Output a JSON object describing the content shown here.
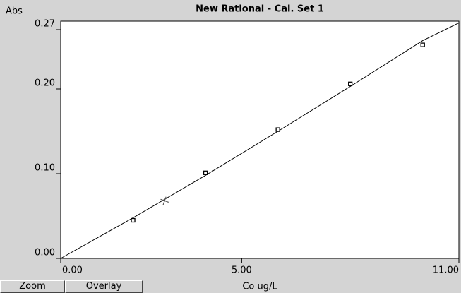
{
  "ui": {
    "buttons": [
      "Zoom",
      "Overlay"
    ]
  },
  "chart_data": {
    "type": "scatter",
    "title": "New Rational - Cal. Set 1",
    "y_label": "Abs",
    "x_label": "Co ug/L",
    "xlim": [
      0,
      11
    ],
    "ylim": [
      0,
      0.28
    ],
    "xticks": [
      {
        "value": 0,
        "label": "0.00"
      },
      {
        "value": 5,
        "label": "5.00"
      },
      {
        "value": 11,
        "label": "11.00"
      }
    ],
    "yticks": [
      {
        "value": 0,
        "label": "0.00"
      },
      {
        "value": 0.1,
        "label": "0.10"
      },
      {
        "value": 0.2,
        "label": "0.20"
      },
      {
        "value": 0.27,
        "label": "0.27"
      }
    ],
    "series": [
      {
        "marker": "line",
        "color": "#000000",
        "x": [
          0,
          2,
          4,
          6,
          8,
          10,
          11
        ],
        "y": [
          0,
          0.048,
          0.098,
          0.15,
          0.203,
          0.257,
          0.278
        ]
      },
      {
        "marker": "square",
        "color": "#000000",
        "x": [
          2,
          4,
          6,
          8,
          10
        ],
        "y": [
          0.045,
          0.101,
          0.152,
          0.206,
          0.252
        ]
      },
      {
        "marker": "cross",
        "color": "#555555",
        "x": [
          2.87
        ],
        "y": [
          0.068
        ]
      }
    ]
  }
}
